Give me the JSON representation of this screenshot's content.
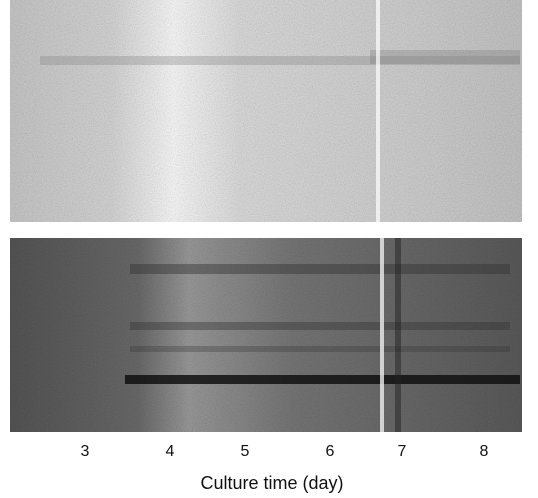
{
  "figure": {
    "lane_labels": [
      "3",
      "4",
      "5",
      "6",
      "7",
      "8"
    ],
    "x_axis_label": "Culture time (day)"
  }
}
